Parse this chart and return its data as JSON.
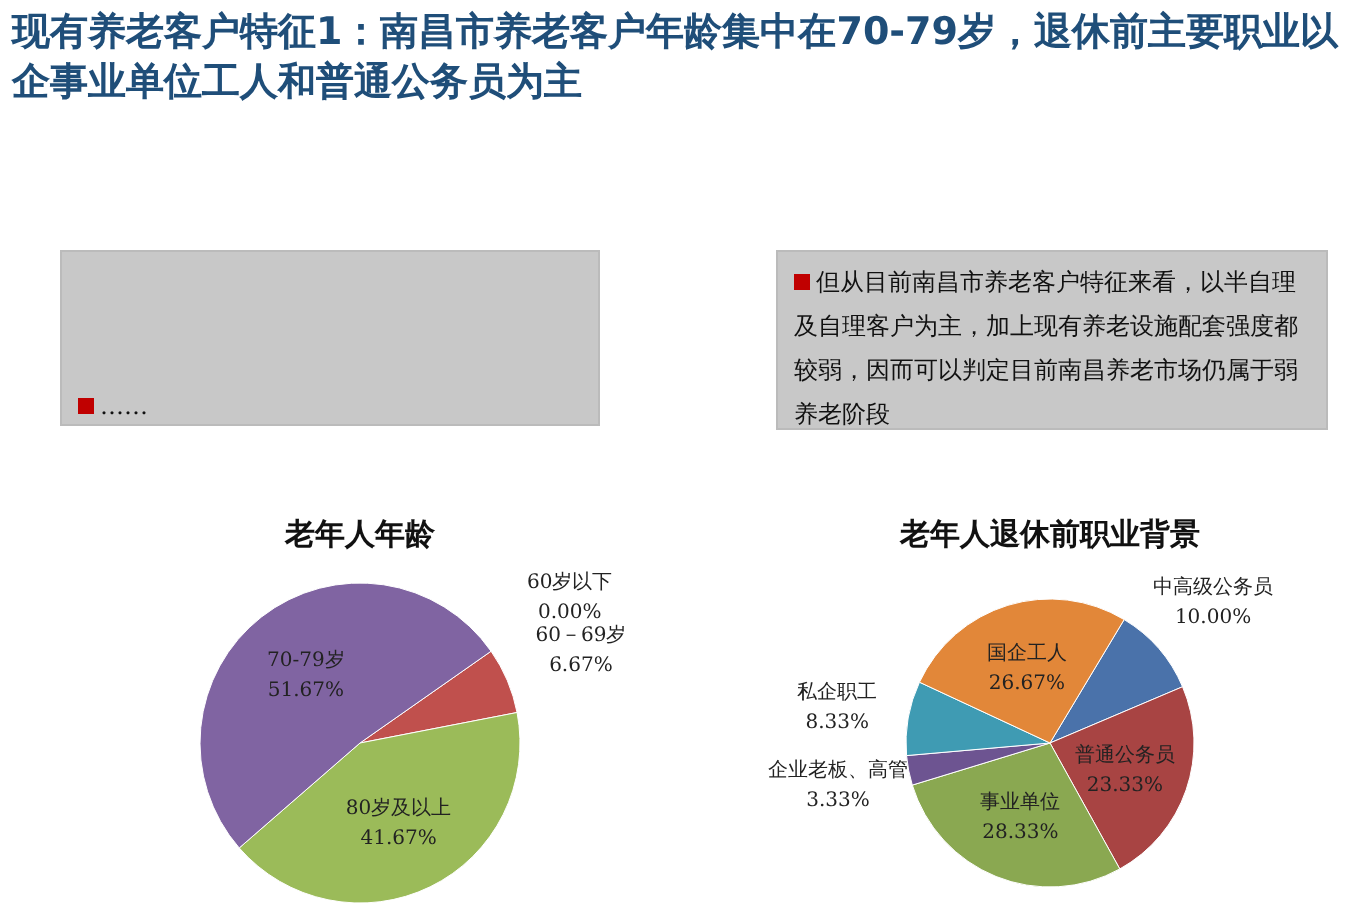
{
  "chart_data": [
    {
      "type": "other",
      "title": "现有养老客户特征1：南昌市养老客户年龄集中在70-79岁，退休前主要职业以企事业单位工人和普通公务员为主",
      "annotations": [
        "……",
        "但从目前南昌市养老客户特征来看，以半自理及自理客户为主，加上现有养老设施配套强度都较弱，因而可以判定目前南昌养老市场仍属于弱养老阶段"
      ]
    },
    {
      "type": "pie",
      "title": "老年人年龄",
      "categories": [
        "60岁以下",
        "60－69岁",
        "80岁及以上",
        "70-79岁"
      ],
      "values": [
        0,
        6.67,
        41.67,
        51.67
      ],
      "colors": [
        "#4f81bd",
        "#c0504d",
        "#9bbb59",
        "#8064a2"
      ],
      "value_labels": [
        "0.00%",
        "6.67%",
        "41.67%",
        "51.67%"
      ]
    },
    {
      "type": "pie",
      "title": "老年人退休前职业背景",
      "categories": [
        "中高级公务员",
        "普通公务员",
        "事业单位",
        "企业老板、高管",
        "私企职工",
        "国企工人"
      ],
      "values": [
        10,
        23.33,
        28.33,
        3.33,
        8.33,
        26.67
      ],
      "colors": [
        "#4a72aa",
        "#a84443",
        "#8aa851",
        "#6d5491",
        "#3f9bb3",
        "#e28739"
      ],
      "value_labels": [
        "10.00%",
        "23.33%",
        "28.33%",
        "3.33%",
        "8.33%",
        "26.67%"
      ]
    }
  ]
}
